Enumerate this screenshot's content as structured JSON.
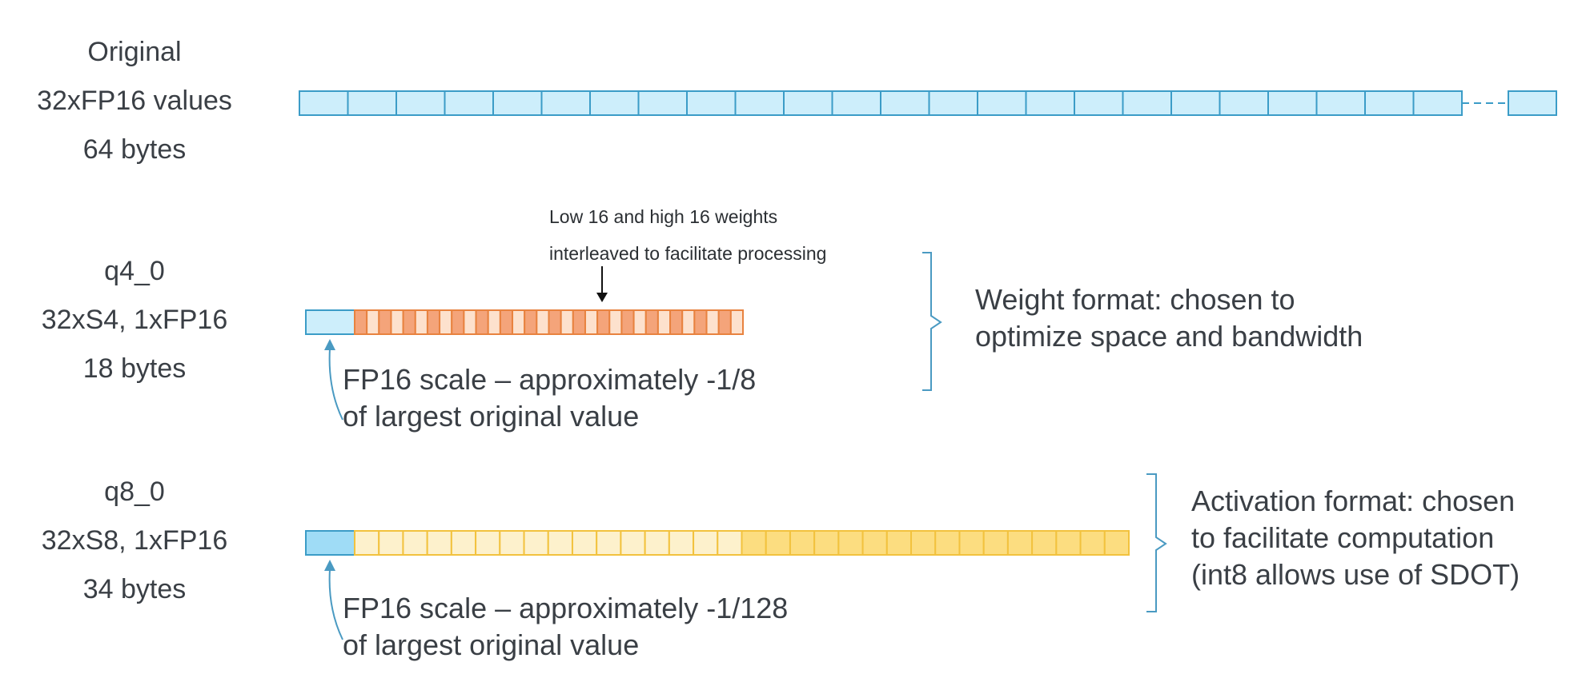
{
  "rows": [
    {
      "title": "Original",
      "line2": "32xFP16 values",
      "line3": "64 bytes"
    },
    {
      "title": "q4_0",
      "line2": "32xS4, 1xFP16",
      "line3": "18 bytes"
    },
    {
      "title": "q8_0",
      "line2": "32xS8, 1xFP16",
      "line3": "34 bytes"
    }
  ],
  "interleave_note": {
    "line1": "Low 16 and high 16 weights",
    "line2": "interleaved to facilitate processing"
  },
  "q4_scale_note": {
    "line1": "FP16 scale – approximately -1/8",
    "line2": "of largest original value"
  },
  "q8_scale_note": {
    "line1": "FP16 scale – approximately -1/128",
    "line2": "of largest original value"
  },
  "weight_format": {
    "line1": "Weight format: chosen to",
    "line2": "optimize space and bandwidth"
  },
  "activation_format": {
    "line1": "Activation format: chosen",
    "line2": "to facilitate computation",
    "line3": "(int8 allows use of SDOT)"
  },
  "colors": {
    "fp16_fill": "#cdeefb",
    "fp16_stroke": "#3b9cc7",
    "q8_scale_fill": "#9fdcf6",
    "s4_dark": "#f4a47a",
    "s4_light": "#fde1cd",
    "s4_stroke": "#e8823f",
    "s8_light": "#fdf1cc",
    "s8_dark": "#fcdd80",
    "s8_stroke": "#f2c23e",
    "bracket": "#4a9ac2",
    "text": "#3a3f45"
  }
}
